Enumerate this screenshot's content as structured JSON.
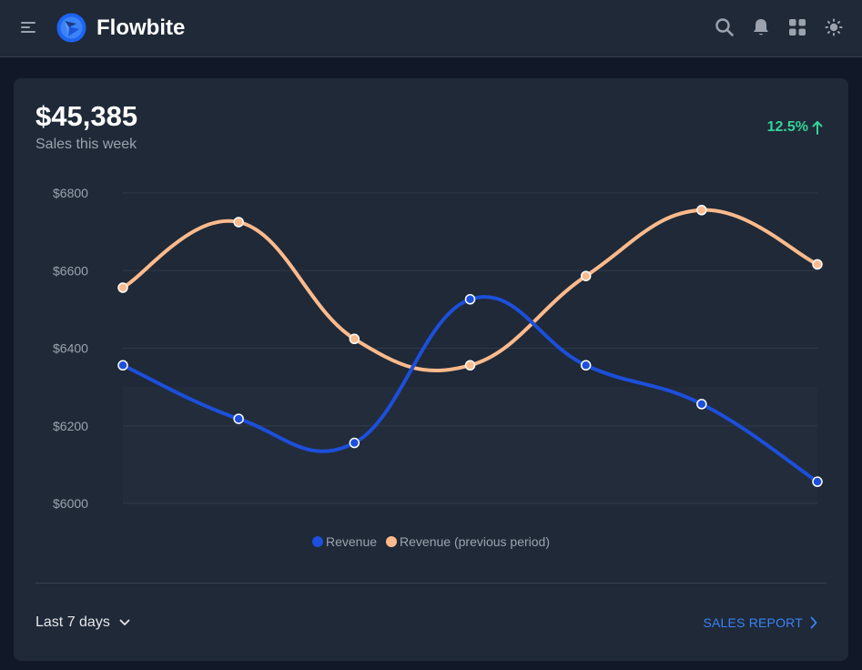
{
  "navbar": {
    "brand": "Flowbite",
    "icons": [
      "menu-icon",
      "search-icon",
      "bell-icon",
      "apps-icon",
      "sun-icon"
    ]
  },
  "card": {
    "amount": "$45,385",
    "subtitle": "Sales this week",
    "change": "12.5%",
    "change_color": "#34d399",
    "range_label": "Last 7 days",
    "report_label": "SALES REPORT"
  },
  "colors": {
    "revenue": "#1c4fdb",
    "previous": "#fdba8c",
    "link": "#3b82f6"
  },
  "chart_data": {
    "type": "area",
    "ylim": [
      6000,
      6800
    ],
    "yticks": [
      "$6800",
      "$6600",
      "$6400",
      "$6200",
      "$6000"
    ],
    "grid": true,
    "legend_position": "bottom-center",
    "series": [
      {
        "name": "Revenue",
        "values": [
          6356,
          6218,
          6156,
          6526,
          6356,
          6256,
          6056
        ]
      },
      {
        "name": "Revenue (previous period)",
        "values": [
          6556,
          6725,
          6424,
          6356,
          6586,
          6756,
          6616
        ]
      }
    ]
  }
}
